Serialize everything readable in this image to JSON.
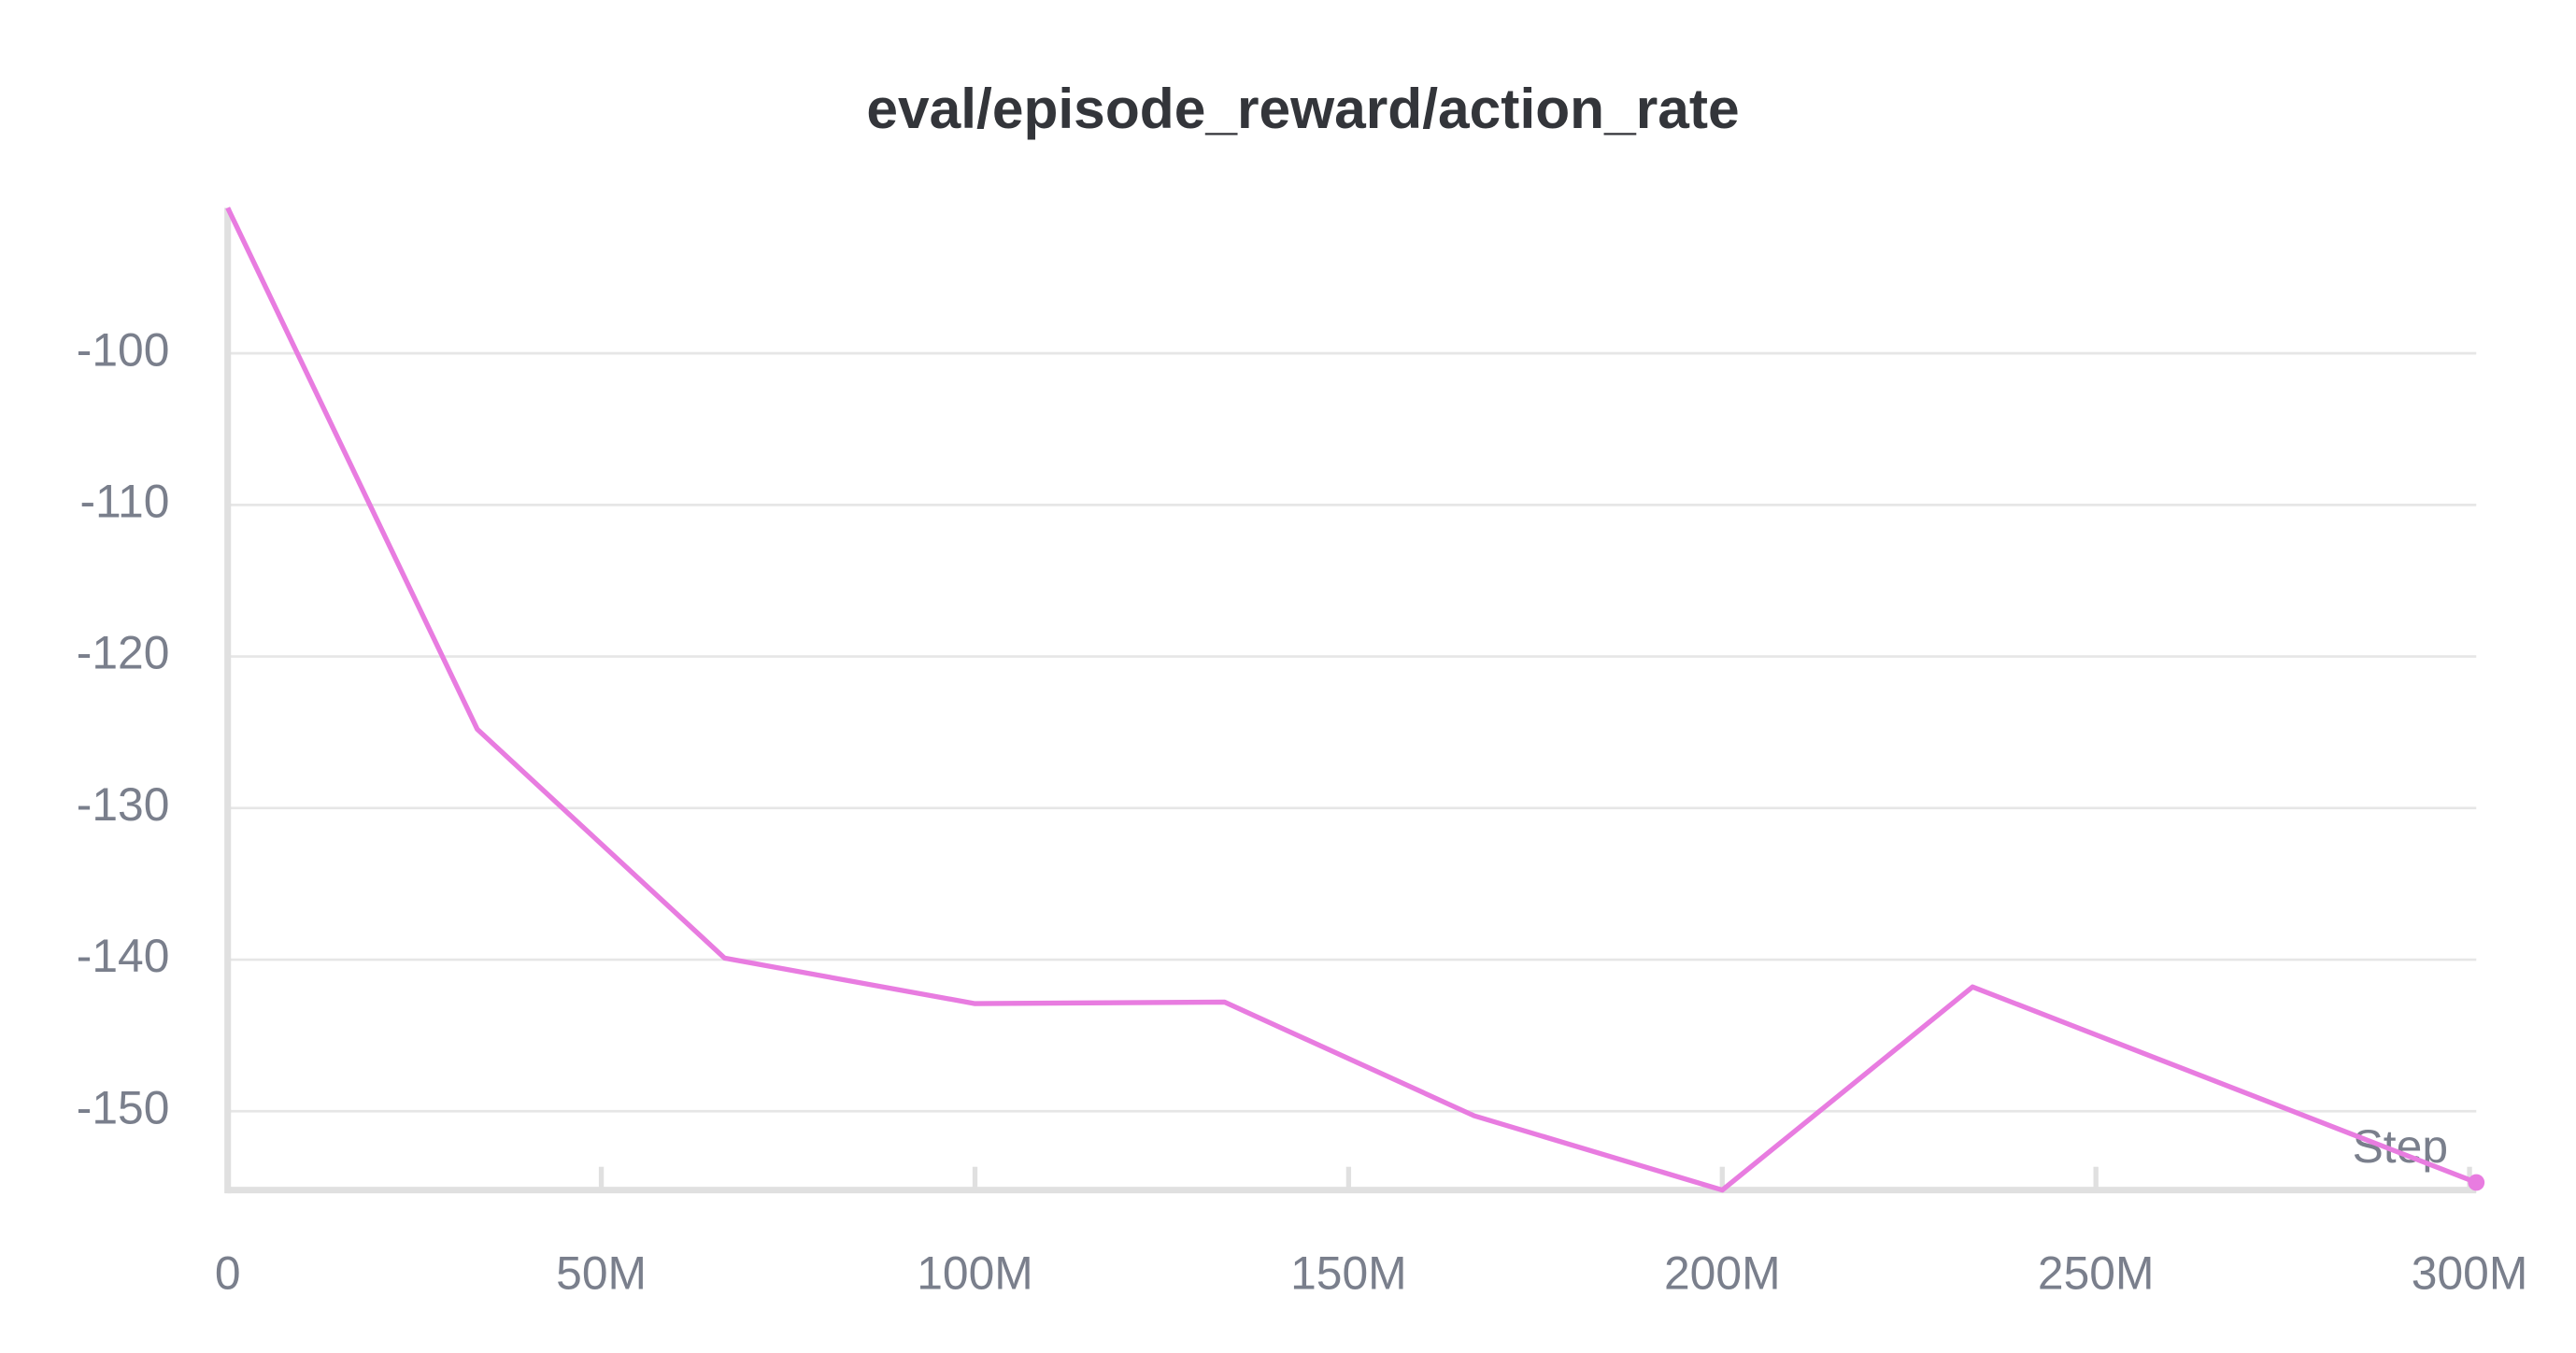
{
  "chart_data": {
    "type": "line",
    "title": "eval/episode_reward/action_rate",
    "x_label": "Step",
    "x": [
      0,
      33400000,
      66500000,
      100000000,
      133400000,
      166800000,
      200000000,
      233500000,
      300900000
    ],
    "series": [
      {
        "name": "eval/episode_reward/action_rate",
        "color": "#e87ce0",
        "values": [
          -90.4,
          -124.8,
          -139.9,
          -142.9,
          -142.8,
          -150.3,
          -155.2,
          -141.8,
          -154.7
        ]
      }
    ],
    "xlim": [
      0,
      300900000
    ],
    "ylim": [
      -155.2,
      -90.4
    ],
    "xticks": [
      0,
      {
        "value": 50000000,
        "label": "50M"
      },
      {
        "value": 100000000,
        "label": "100M"
      },
      {
        "value": 150000000,
        "label": "150M"
      },
      {
        "value": 200000000,
        "label": "200M"
      },
      {
        "value": 250000000,
        "label": "250M"
      },
      {
        "value": 300000000,
        "label": "300M"
      }
    ],
    "yticks": [
      -100,
      -110,
      -120,
      -130,
      -140,
      -150
    ],
    "grid": true
  }
}
